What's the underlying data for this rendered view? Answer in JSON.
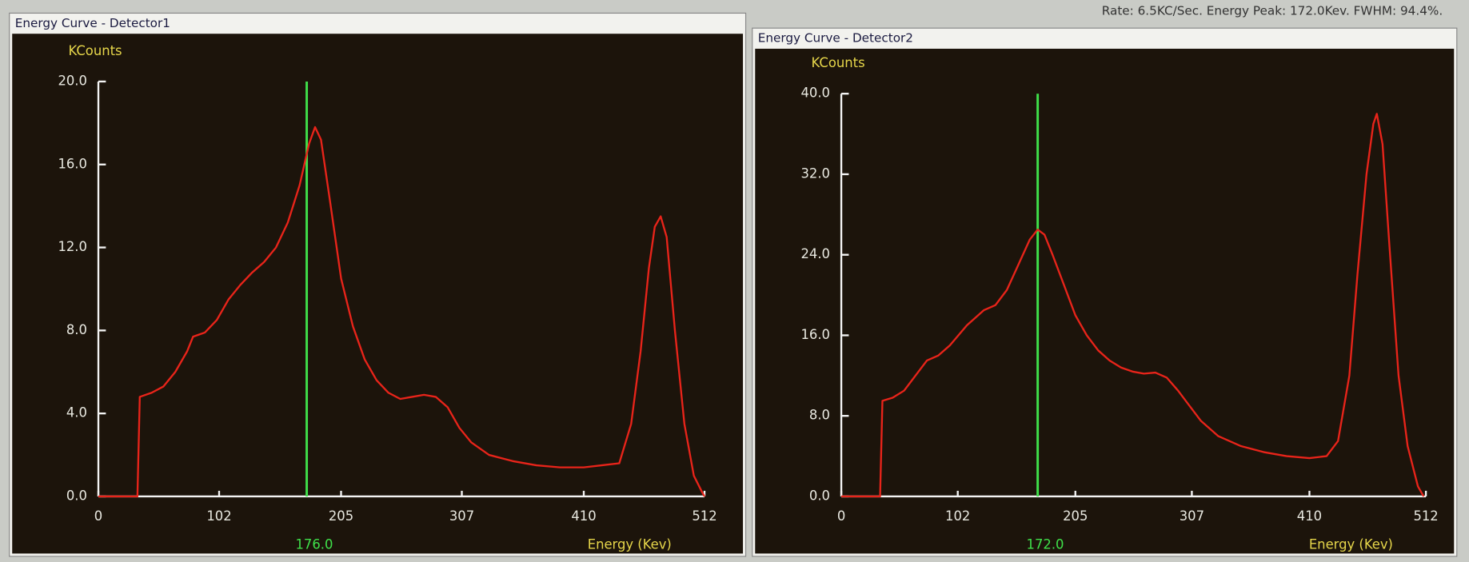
{
  "status_bar": {
    "text": "Rate: 6.5KC/Sec.   Energy Peak: 172.0Kev.   FWHM: 94.4%."
  },
  "chart_data": [
    {
      "type": "line",
      "title": "Energy Curve - Detector1",
      "ylabel": "KCounts",
      "xlabel": "Energy (Kev)",
      "xlim": [
        0,
        512
      ],
      "ylim": [
        0,
        20
      ],
      "xticks": [
        0,
        102,
        205,
        307,
        410,
        512
      ],
      "yticks": [
        {
          "value": 0,
          "label": "0.0"
        },
        {
          "value": 4,
          "label": "4.0"
        },
        {
          "value": 8,
          "label": "8.0"
        },
        {
          "value": 12,
          "label": "12.0"
        },
        {
          "value": 16,
          "label": "16.0"
        },
        {
          "value": 20,
          "label": "20.0"
        }
      ],
      "marker": {
        "value": 176,
        "label": "176.0",
        "color": "#3fe04a"
      },
      "series": [
        {
          "color": "#e8241a",
          "x": [
            0,
            33,
            35,
            45,
            55,
            65,
            75,
            80,
            90,
            100,
            110,
            120,
            130,
            140,
            150,
            160,
            170,
            178,
            183,
            188,
            195,
            205,
            215,
            225,
            235,
            245,
            255,
            265,
            275,
            285,
            295,
            305,
            315,
            330,
            350,
            370,
            390,
            410,
            425,
            440,
            450,
            458,
            465,
            470,
            475,
            480,
            487,
            495,
            503,
            510,
            512
          ],
          "values": [
            0,
            0,
            4.8,
            5.0,
            5.3,
            6.0,
            7.0,
            7.7,
            7.9,
            8.5,
            9.5,
            10.2,
            10.8,
            11.3,
            12.0,
            13.2,
            15.0,
            17.0,
            17.8,
            17.2,
            14.5,
            10.5,
            8.2,
            6.6,
            5.6,
            5.0,
            4.7,
            4.8,
            4.9,
            4.8,
            4.3,
            3.3,
            2.6,
            2.0,
            1.7,
            1.5,
            1.4,
            1.4,
            1.5,
            1.6,
            3.5,
            7.0,
            11.0,
            13.0,
            13.5,
            12.5,
            8.0,
            3.5,
            1.0,
            0.2,
            0
          ]
        }
      ]
    },
    {
      "type": "line",
      "title": "Energy Curve - Detector2",
      "ylabel": "KCounts",
      "xlabel": "Energy (Kev)",
      "xlim": [
        0,
        512
      ],
      "ylim": [
        0,
        40
      ],
      "xticks": [
        0,
        102,
        205,
        307,
        410,
        512
      ],
      "yticks": [
        {
          "value": 0,
          "label": "0.0"
        },
        {
          "value": 8,
          "label": "8.0"
        },
        {
          "value": 16,
          "label": "16.0"
        },
        {
          "value": 24,
          "label": "24.0"
        },
        {
          "value": 32,
          "label": "32.0"
        },
        {
          "value": 40,
          "label": "40.0"
        }
      ],
      "marker": {
        "value": 172,
        "label": "172.0",
        "color": "#3fe04a"
      },
      "series": [
        {
          "color": "#e8241a",
          "x": [
            0,
            34,
            36,
            45,
            55,
            65,
            75,
            85,
            95,
            110,
            125,
            135,
            145,
            155,
            165,
            172,
            178,
            185,
            195,
            205,
            215,
            225,
            235,
            245,
            255,
            265,
            275,
            285,
            295,
            305,
            315,
            330,
            350,
            370,
            390,
            410,
            425,
            435,
            445,
            452,
            460,
            466,
            469,
            474,
            480,
            488,
            496,
            505,
            510
          ],
          "values": [
            0,
            0,
            9.5,
            9.8,
            10.5,
            12.0,
            13.5,
            14.0,
            15.0,
            17.0,
            18.5,
            19.0,
            20.5,
            23.0,
            25.5,
            26.5,
            26.0,
            24.0,
            21.0,
            18.0,
            16.0,
            14.5,
            13.5,
            12.8,
            12.4,
            12.2,
            12.3,
            11.8,
            10.5,
            9.0,
            7.5,
            6.0,
            5.0,
            4.4,
            4.0,
            3.8,
            4.0,
            5.5,
            12.0,
            22.0,
            32.0,
            37.0,
            38.0,
            35.0,
            25.0,
            12.0,
            5.0,
            1.0,
            0
          ]
        }
      ]
    }
  ]
}
